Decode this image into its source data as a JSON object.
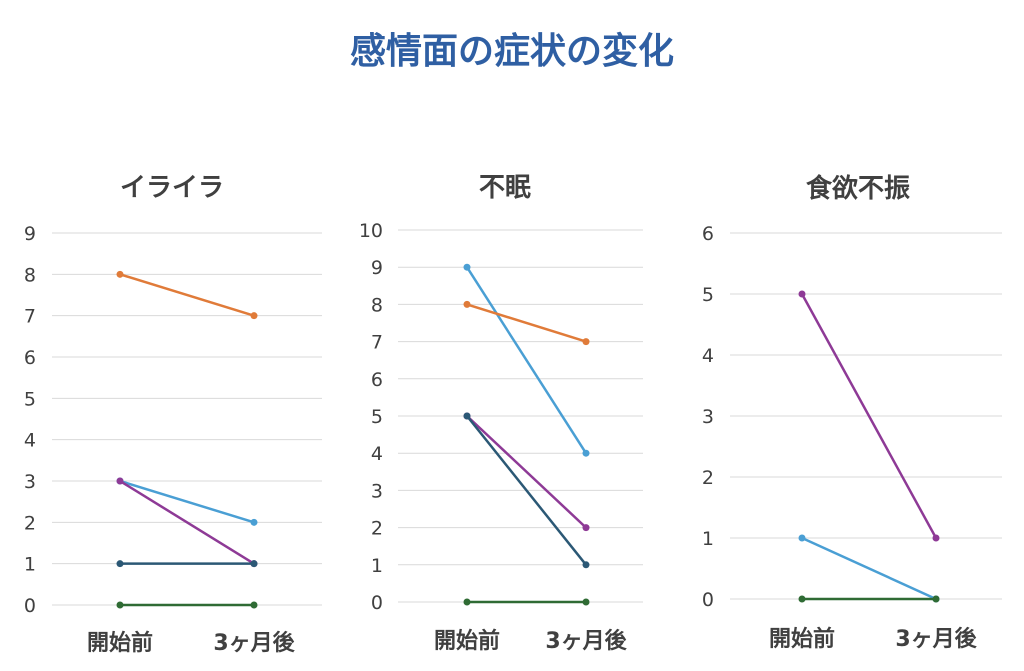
{
  "title": "感情面の症状の変化",
  "chart_data": [
    {
      "type": "line",
      "title": "イライラ",
      "categories": [
        "開始前",
        "3ヶ月後"
      ],
      "ylim": [
        0,
        9
      ],
      "yticks": [
        0,
        1,
        2,
        3,
        4,
        5,
        6,
        7,
        8,
        9
      ],
      "grid": true,
      "series": [
        {
          "color": "#e07b39",
          "values": [
            8,
            7
          ]
        },
        {
          "color": "#4a9fd4",
          "values": [
            3,
            2
          ]
        },
        {
          "color": "#8e3a96",
          "values": [
            3,
            1
          ]
        },
        {
          "color": "#2b5875",
          "values": [
            1,
            1
          ]
        },
        {
          "color": "#2f6b34",
          "values": [
            0,
            0
          ]
        }
      ]
    },
    {
      "type": "line",
      "title": "不眠",
      "categories": [
        "開始前",
        "3ヶ月後"
      ],
      "ylim": [
        0,
        10
      ],
      "yticks": [
        0,
        1,
        2,
        3,
        4,
        5,
        6,
        7,
        8,
        9,
        10
      ],
      "grid": true,
      "series": [
        {
          "color": "#4a9fd4",
          "values": [
            9,
            4
          ]
        },
        {
          "color": "#e07b39",
          "values": [
            8,
            7
          ]
        },
        {
          "color": "#8e3a96",
          "values": [
            5,
            2
          ]
        },
        {
          "color": "#2b5875",
          "values": [
            5,
            1
          ]
        },
        {
          "color": "#2f6b34",
          "values": [
            0,
            0
          ]
        }
      ]
    },
    {
      "type": "line",
      "title": "食欲不振",
      "categories": [
        "開始前",
        "3ヶ月後"
      ],
      "ylim": [
        0,
        6
      ],
      "yticks": [
        0,
        1,
        2,
        3,
        4,
        5,
        6
      ],
      "grid": true,
      "series": [
        {
          "color": "#8e3a96",
          "values": [
            5,
            1
          ]
        },
        {
          "color": "#4a9fd4",
          "values": [
            1,
            0
          ]
        },
        {
          "color": "#2f6b34",
          "values": [
            0,
            0
          ]
        }
      ]
    }
  ]
}
